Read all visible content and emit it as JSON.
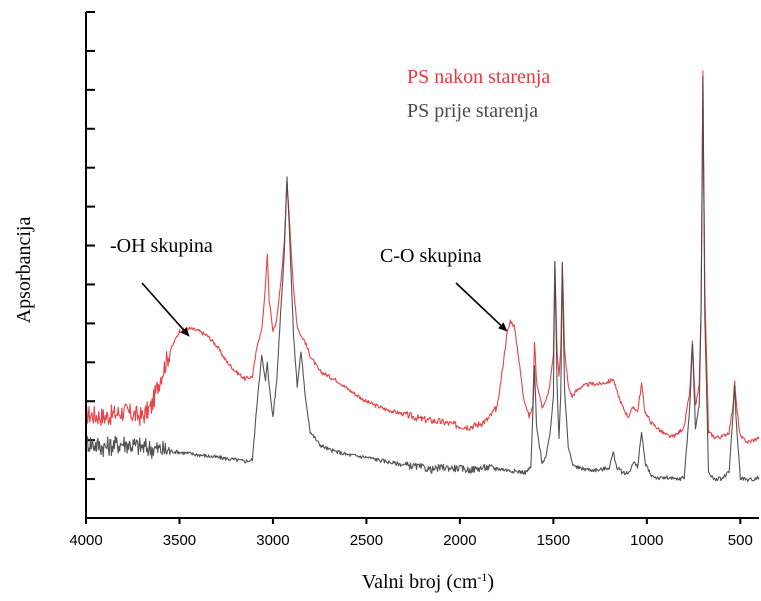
{
  "chart_data": {
    "type": "line",
    "ylabel": "Apsorbancija",
    "xlabel_main": "Valni broj (cm",
    "xlabel_sup": "-1",
    "xlabel_close": ")",
    "xlim": [
      4000,
      400
    ],
    "x_reversed": true,
    "ylim": [
      0,
      1
    ],
    "x_ticks": [
      4000,
      3500,
      3000,
      2500,
      2000,
      1500,
      1000,
      500
    ],
    "x_tick_labels": [
      "4000",
      "3500",
      "3000",
      "2500",
      "2000",
      "1500",
      "1000",
      "500"
    ],
    "y_tick_count": 13,
    "grid": false,
    "legend_position": "top-right",
    "series": [
      {
        "name": "PS nakon starenja",
        "color": "#e8383d",
        "points": [
          [
            4000,
            0.205
          ],
          [
            3900,
            0.2
          ],
          [
            3800,
            0.21
          ],
          [
            3700,
            0.2
          ],
          [
            3650,
            0.22
          ],
          [
            3600,
            0.28
          ],
          [
            3550,
            0.33
          ],
          [
            3500,
            0.37
          ],
          [
            3450,
            0.375
          ],
          [
            3400,
            0.37
          ],
          [
            3350,
            0.36
          ],
          [
            3300,
            0.34
          ],
          [
            3250,
            0.31
          ],
          [
            3200,
            0.29
          ],
          [
            3150,
            0.275
          ],
          [
            3110,
            0.28
          ],
          [
            3080,
            0.35
          ],
          [
            3060,
            0.37
          ],
          [
            3040,
            0.46
          ],
          [
            3030,
            0.52
          ],
          [
            3020,
            0.43
          ],
          [
            3000,
            0.37
          ],
          [
            2980,
            0.39
          ],
          [
            2960,
            0.46
          ],
          [
            2940,
            0.54
          ],
          [
            2925,
            0.665
          ],
          [
            2910,
            0.58
          ],
          [
            2890,
            0.45
          ],
          [
            2870,
            0.38
          ],
          [
            2850,
            0.36
          ],
          [
            2830,
            0.35
          ],
          [
            2800,
            0.32
          ],
          [
            2750,
            0.29
          ],
          [
            2700,
            0.28
          ],
          [
            2650,
            0.27
          ],
          [
            2600,
            0.255
          ],
          [
            2500,
            0.23
          ],
          [
            2400,
            0.215
          ],
          [
            2300,
            0.205
          ],
          [
            2200,
            0.195
          ],
          [
            2100,
            0.19
          ],
          [
            2000,
            0.182
          ],
          [
            1950,
            0.18
          ],
          [
            1900,
            0.185
          ],
          [
            1850,
            0.195
          ],
          [
            1800,
            0.22
          ],
          [
            1770,
            0.3
          ],
          [
            1750,
            0.36
          ],
          [
            1730,
            0.39
          ],
          [
            1710,
            0.38
          ],
          [
            1690,
            0.33
          ],
          [
            1660,
            0.24
          ],
          [
            1630,
            0.2
          ],
          [
            1610,
            0.22
          ],
          [
            1601,
            0.35
          ],
          [
            1590,
            0.27
          ],
          [
            1560,
            0.22
          ],
          [
            1540,
            0.23
          ],
          [
            1520,
            0.26
          ],
          [
            1500,
            0.32
          ],
          [
            1492,
            0.505
          ],
          [
            1480,
            0.33
          ],
          [
            1470,
            0.28
          ],
          [
            1460,
            0.34
          ],
          [
            1452,
            0.505
          ],
          [
            1440,
            0.33
          ],
          [
            1420,
            0.26
          ],
          [
            1400,
            0.24
          ],
          [
            1380,
            0.25
          ],
          [
            1350,
            0.26
          ],
          [
            1300,
            0.265
          ],
          [
            1250,
            0.265
          ],
          [
            1200,
            0.27
          ],
          [
            1180,
            0.275
          ],
          [
            1160,
            0.25
          ],
          [
            1130,
            0.22
          ],
          [
            1100,
            0.2
          ],
          [
            1070,
            0.22
          ],
          [
            1050,
            0.21
          ],
          [
            1028,
            0.265
          ],
          [
            1010,
            0.21
          ],
          [
            980,
            0.19
          ],
          [
            950,
            0.18
          ],
          [
            920,
            0.17
          ],
          [
            900,
            0.165
          ],
          [
            870,
            0.16
          ],
          [
            840,
            0.165
          ],
          [
            800,
            0.18
          ],
          [
            770,
            0.25
          ],
          [
            756,
            0.35
          ],
          [
            740,
            0.22
          ],
          [
            720,
            0.26
          ],
          [
            710,
            0.4
          ],
          [
            700,
            0.88
          ],
          [
            690,
            0.45
          ],
          [
            670,
            0.17
          ],
          [
            640,
            0.16
          ],
          [
            600,
            0.16
          ],
          [
            560,
            0.17
          ],
          [
            540,
            0.22
          ],
          [
            530,
            0.27
          ],
          [
            520,
            0.22
          ],
          [
            500,
            0.16
          ],
          [
            460,
            0.15
          ],
          [
            420,
            0.155
          ],
          [
            400,
            0.16
          ]
        ]
      },
      {
        "name": "PS prije starenja",
        "color": "#4a4a4a",
        "points": [
          [
            4000,
            0.15
          ],
          [
            3900,
            0.14
          ],
          [
            3800,
            0.148
          ],
          [
            3700,
            0.14
          ],
          [
            3600,
            0.135
          ],
          [
            3500,
            0.13
          ],
          [
            3400,
            0.125
          ],
          [
            3300,
            0.12
          ],
          [
            3200,
            0.115
          ],
          [
            3150,
            0.112
          ],
          [
            3110,
            0.115
          ],
          [
            3080,
            0.25
          ],
          [
            3060,
            0.32
          ],
          [
            3040,
            0.27
          ],
          [
            3030,
            0.31
          ],
          [
            3020,
            0.26
          ],
          [
            3000,
            0.2
          ],
          [
            2980,
            0.27
          ],
          [
            2960,
            0.4
          ],
          [
            2940,
            0.52
          ],
          [
            2925,
            0.675
          ],
          [
            2910,
            0.55
          ],
          [
            2890,
            0.36
          ],
          [
            2870,
            0.26
          ],
          [
            2850,
            0.33
          ],
          [
            2830,
            0.25
          ],
          [
            2800,
            0.17
          ],
          [
            2750,
            0.145
          ],
          [
            2700,
            0.135
          ],
          [
            2600,
            0.125
          ],
          [
            2500,
            0.12
          ],
          [
            2400,
            0.112
          ],
          [
            2300,
            0.105
          ],
          [
            2200,
            0.1
          ],
          [
            2150,
            0.095
          ],
          [
            2100,
            0.1
          ],
          [
            2000,
            0.098
          ],
          [
            1950,
            0.095
          ],
          [
            1900,
            0.098
          ],
          [
            1850,
            0.1
          ],
          [
            1800,
            0.098
          ],
          [
            1750,
            0.095
          ],
          [
            1700,
            0.092
          ],
          [
            1650,
            0.09
          ],
          [
            1620,
            0.1
          ],
          [
            1601,
            0.3
          ],
          [
            1590,
            0.18
          ],
          [
            1560,
            0.11
          ],
          [
            1540,
            0.12
          ],
          [
            1520,
            0.16
          ],
          [
            1500,
            0.24
          ],
          [
            1492,
            0.505
          ],
          [
            1480,
            0.26
          ],
          [
            1470,
            0.16
          ],
          [
            1460,
            0.25
          ],
          [
            1452,
            0.505
          ],
          [
            1440,
            0.25
          ],
          [
            1420,
            0.14
          ],
          [
            1400,
            0.11
          ],
          [
            1380,
            0.1
          ],
          [
            1350,
            0.098
          ],
          [
            1300,
            0.095
          ],
          [
            1250,
            0.095
          ],
          [
            1200,
            0.1
          ],
          [
            1180,
            0.13
          ],
          [
            1160,
            0.1
          ],
          [
            1130,
            0.09
          ],
          [
            1100,
            0.088
          ],
          [
            1070,
            0.11
          ],
          [
            1050,
            0.1
          ],
          [
            1028,
            0.17
          ],
          [
            1010,
            0.11
          ],
          [
            980,
            0.085
          ],
          [
            950,
            0.08
          ],
          [
            920,
            0.078
          ],
          [
            900,
            0.08
          ],
          [
            870,
            0.078
          ],
          [
            840,
            0.076
          ],
          [
            800,
            0.08
          ],
          [
            770,
            0.22
          ],
          [
            756,
            0.345
          ],
          [
            740,
            0.18
          ],
          [
            720,
            0.22
          ],
          [
            710,
            0.4
          ],
          [
            700,
            0.87
          ],
          [
            690,
            0.4
          ],
          [
            670,
            0.09
          ],
          [
            640,
            0.076
          ],
          [
            600,
            0.078
          ],
          [
            560,
            0.09
          ],
          [
            540,
            0.2
          ],
          [
            530,
            0.26
          ],
          [
            520,
            0.18
          ],
          [
            500,
            0.08
          ],
          [
            460,
            0.075
          ],
          [
            420,
            0.078
          ],
          [
            400,
            0.08
          ]
        ]
      }
    ],
    "annotations": [
      {
        "text": "-OH skupina",
        "arrow_to_x": 3450,
        "arrow_to_y": 0.36
      },
      {
        "text": "C-O skupina",
        "arrow_to_x": 1750,
        "arrow_to_y": 0.37
      }
    ]
  }
}
